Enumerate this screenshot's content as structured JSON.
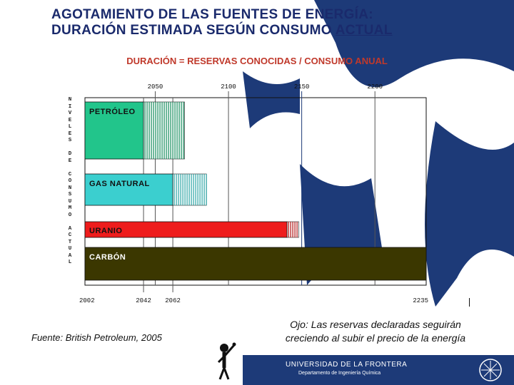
{
  "header": {
    "title_line1": "AGOTAMIENTO DE LAS FUENTES DE ENERGÍA:",
    "title_line2_a": "DURACIÓN ESTIMADA SEGÚN CONSUMO ",
    "title_line2_b": "ACTUAL",
    "subtitle": "DURACIÓN = RESERVAS CONOCIDAS / CONSUMO ANUAL"
  },
  "chart_data": {
    "type": "bar",
    "orientation": "horizontal",
    "ylabel": "NIVELES DE CONSUMO ACTUAL",
    "top_axis_ticks": [
      "2050",
      "2100",
      "2150",
      "2200"
    ],
    "top_axis_values": [
      2050,
      2100,
      2150,
      2200
    ],
    "bottom_axis_ticks": [
      "2002",
      "2042",
      "2062",
      "2235"
    ],
    "bottom_axis_values": [
      2002,
      2042,
      2062,
      2235
    ],
    "xlim": [
      2002,
      2235
    ],
    "categories": [
      "PETRÓLEO",
      "GAS NATURAL",
      "URANIO",
      "CARBÓN"
    ],
    "series": [
      {
        "values": [
          2042,
          2062,
          2140,
          2235
        ]
      }
    ],
    "hatched_extension_end": [
      2070,
      2085,
      2148,
      2235
    ],
    "colors": [
      "#22c58b",
      "#3bcfcf",
      "#ee1c1c",
      "#3b3700"
    ],
    "hatch_colors": [
      "#118a5a",
      "#2aa3a3",
      "#b01010",
      "#3b3700"
    ]
  },
  "footer": {
    "source": "Fuente: British Petroleum, 2005",
    "note_line1": "Ojo: Las reservas declaradas seguirán",
    "note_line2": "creciendo al subir el precio de la energía",
    "university": "UNIVERSIDAD DE LA FRONTERA",
    "department": "Departamento de Ingeniería Química"
  }
}
